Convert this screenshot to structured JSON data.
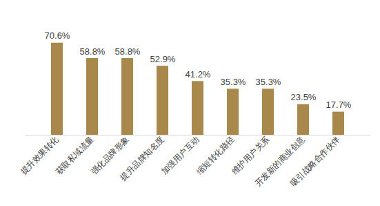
{
  "chart_data": {
    "type": "bar",
    "categories": [
      "提升效果转化",
      "获取私域流量",
      "强化品牌形象",
      "提升品牌知名度",
      "加强用户互动",
      "缩短转化路径",
      "维护用户关系",
      "开发新的商业创意",
      "吸引战略合作伙伴"
    ],
    "values": [
      70.6,
      58.8,
      58.8,
      52.9,
      41.2,
      35.3,
      35.3,
      23.5,
      17.7
    ],
    "value_labels": [
      "70.6%",
      "58.8%",
      "58.8%",
      "52.9%",
      "41.2%",
      "35.3%",
      "35.3%",
      "23.5%",
      "17.7%"
    ],
    "color": "#a8894b",
    "ylim": [
      0,
      80
    ],
    "data_labels": true,
    "tick_labels": "x",
    "grid": false
  }
}
